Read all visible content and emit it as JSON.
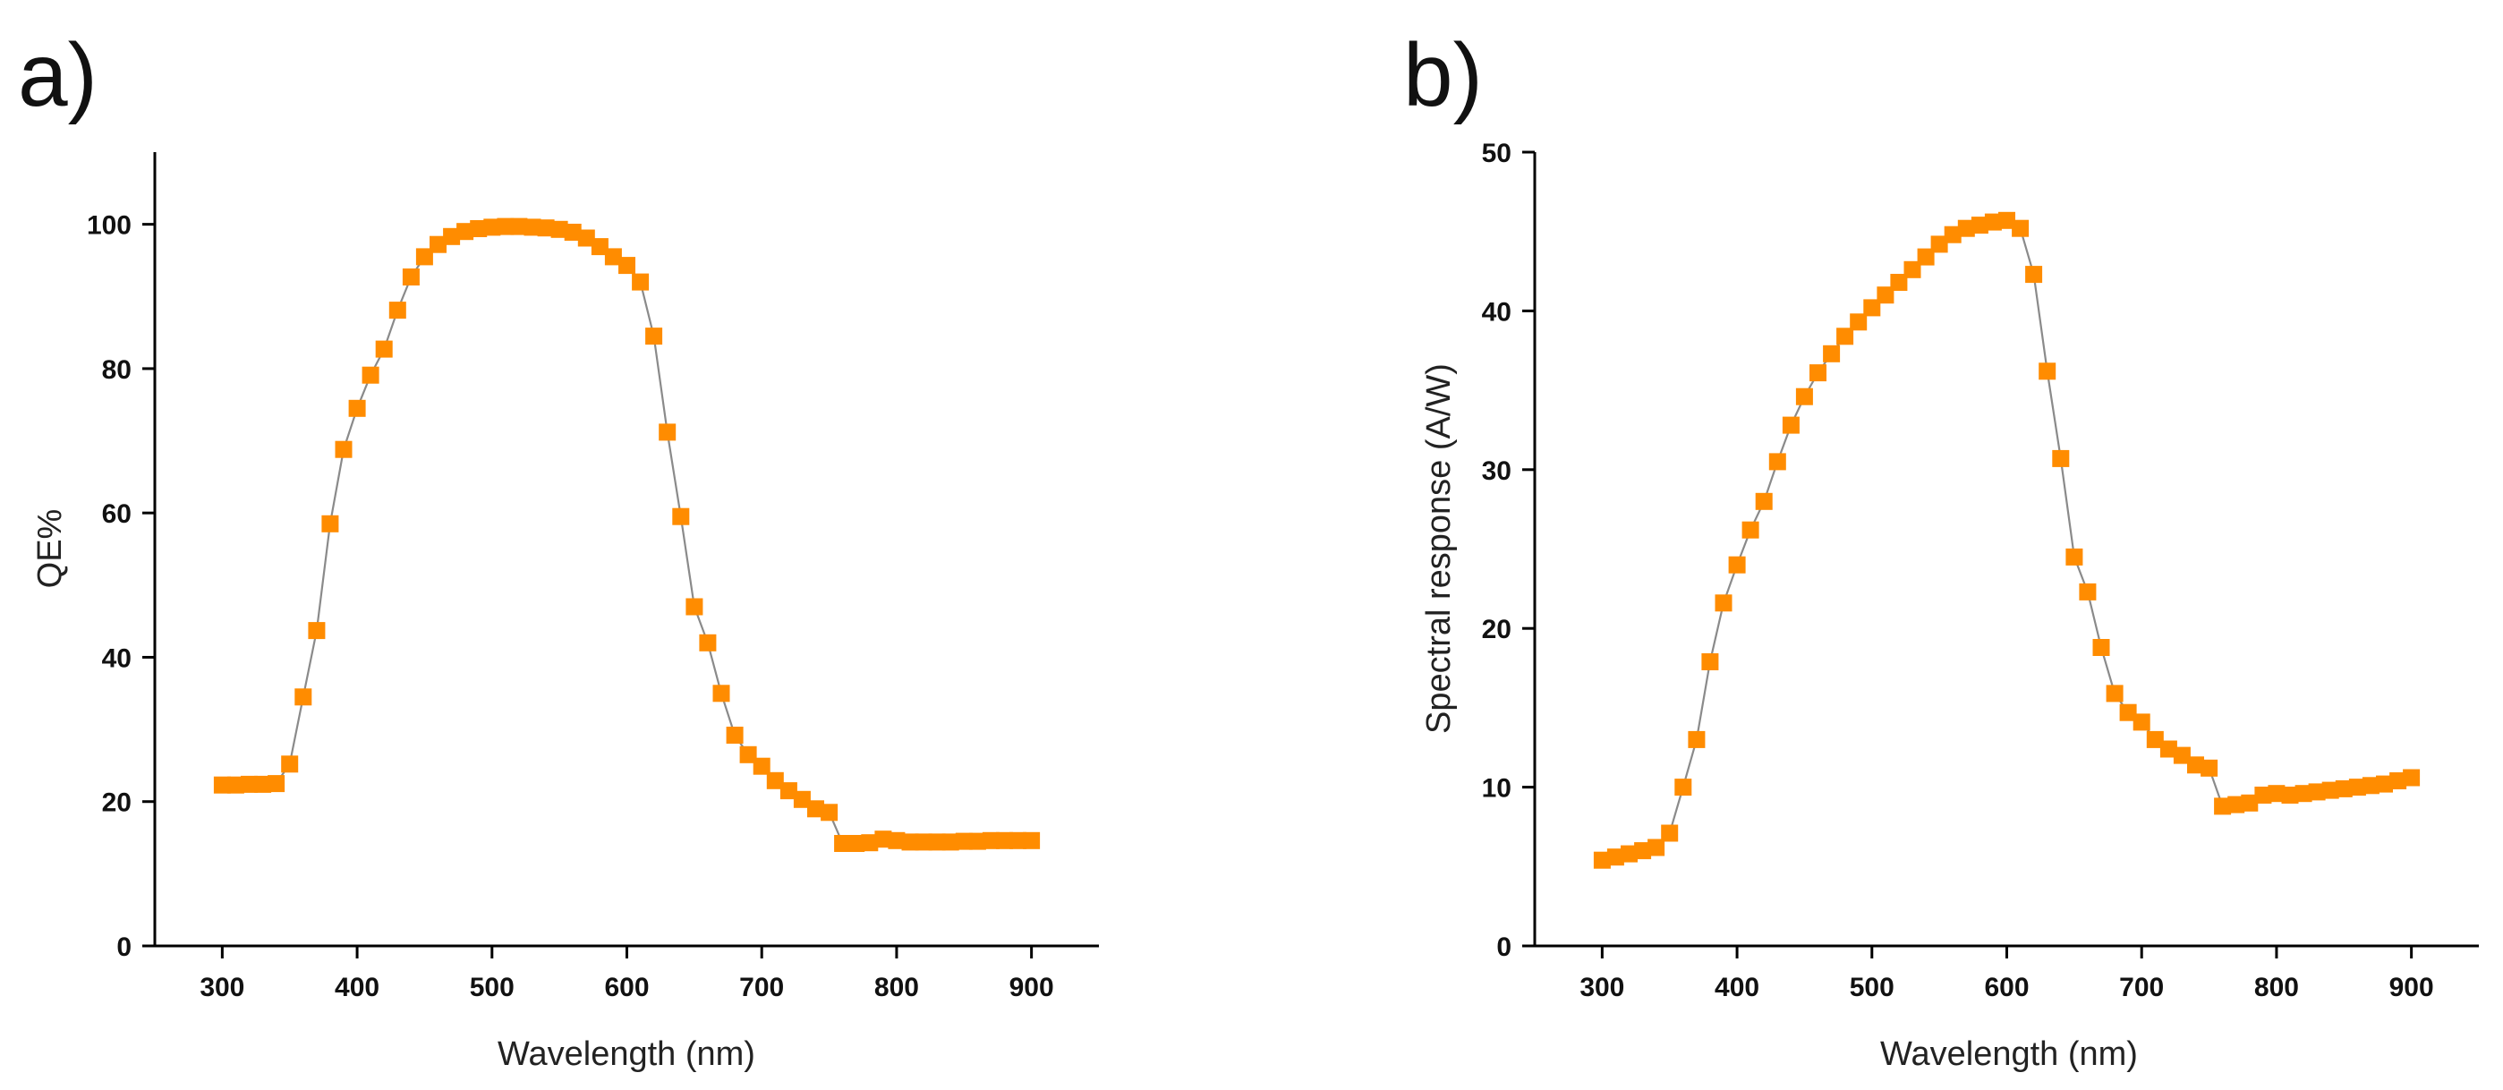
{
  "chart_data": [
    {
      "type": "line",
      "panel_label": "a)",
      "title": "",
      "xlabel": "Wavelength (nm)",
      "ylabel": "QE%",
      "xlim": [
        250,
        950
      ],
      "ylim": [
        0,
        110
      ],
      "xticks": [
        300,
        400,
        500,
        600,
        700,
        800,
        900
      ],
      "yticks": [
        0,
        20,
        40,
        60,
        80,
        100
      ],
      "xtick_labels": [
        "300",
        "400",
        "500",
        "600",
        "700",
        "800",
        "900"
      ],
      "ytick_labels": [
        "0",
        "20",
        "40",
        "60",
        "80",
        "100"
      ],
      "grid": false,
      "marker": "square",
      "marker_color": "#ff8c00",
      "line_color": "#8a8a8a",
      "series": [
        {
          "name": "QE",
          "x": [
            300,
            310,
            320,
            330,
            340,
            350,
            360,
            370,
            380,
            390,
            400,
            410,
            420,
            430,
            440,
            450,
            460,
            470,
            480,
            490,
            500,
            510,
            520,
            530,
            540,
            550,
            560,
            570,
            580,
            590,
            600,
            610,
            620,
            630,
            640,
            650,
            660,
            670,
            680,
            690,
            700,
            710,
            720,
            730,
            740,
            750,
            760,
            770,
            780,
            790,
            800,
            810,
            820,
            830,
            840,
            850,
            860,
            870,
            880,
            890,
            900
          ],
          "values": [
            22.3,
            22.3,
            22.4,
            22.4,
            22.5,
            25.2,
            34.5,
            43.7,
            58.5,
            68.8,
            74.5,
            79.1,
            82.7,
            88.1,
            92.7,
            95.5,
            97.2,
            98.3,
            99.0,
            99.4,
            99.6,
            99.7,
            99.7,
            99.6,
            99.5,
            99.3,
            98.9,
            98.1,
            96.9,
            95.5,
            94.3,
            92.0,
            84.5,
            71.2,
            59.5,
            47.0,
            42.0,
            35.0,
            29.2,
            26.5,
            24.9,
            22.9,
            21.5,
            20.3,
            19.0,
            18.5,
            14.2,
            14.2,
            14.3,
            14.8,
            14.6,
            14.4,
            14.4,
            14.4,
            14.4,
            14.5,
            14.5,
            14.6,
            14.6,
            14.6,
            14.6
          ]
        }
      ]
    },
    {
      "type": "line",
      "panel_label": "b)",
      "title": "",
      "xlabel": "Wavelength (nm)",
      "ylabel": "Spectral response (A/W)",
      "xlim": [
        250,
        950
      ],
      "ylim": [
        0,
        50
      ],
      "xticks": [
        300,
        400,
        500,
        600,
        700,
        800,
        900
      ],
      "yticks": [
        0,
        10,
        20,
        30,
        40,
        50
      ],
      "xtick_labels": [
        "300",
        "400",
        "500",
        "600",
        "700",
        "800",
        "900"
      ],
      "ytick_labels": [
        "0",
        "10",
        "20",
        "30",
        "40",
        "50"
      ],
      "grid": false,
      "marker": "square",
      "marker_color": "#ff8c00",
      "line_color": "#8a8a8a",
      "series": [
        {
          "name": "Spectral response",
          "x": [
            300,
            310,
            320,
            330,
            340,
            350,
            360,
            370,
            380,
            390,
            400,
            410,
            420,
            430,
            440,
            450,
            460,
            470,
            480,
            490,
            500,
            510,
            520,
            530,
            540,
            550,
            560,
            570,
            580,
            590,
            600,
            610,
            620,
            630,
            640,
            650,
            660,
            670,
            680,
            690,
            700,
            710,
            720,
            730,
            740,
            750,
            760,
            770,
            780,
            790,
            800,
            810,
            820,
            830,
            840,
            850,
            860,
            870,
            880,
            890,
            900
          ],
          "values": [
            5.4,
            5.6,
            5.8,
            6.0,
            6.2,
            7.1,
            10.0,
            13.0,
            17.9,
            21.6,
            24.0,
            26.2,
            28.0,
            30.5,
            32.8,
            34.6,
            36.1,
            37.3,
            38.4,
            39.3,
            40.2,
            41.0,
            41.8,
            42.6,
            43.4,
            44.2,
            44.8,
            45.2,
            45.4,
            45.6,
            45.7,
            45.2,
            42.3,
            36.2,
            30.7,
            24.5,
            22.3,
            18.8,
            15.9,
            14.7,
            14.1,
            13.0,
            12.4,
            12.0,
            11.4,
            11.2,
            8.8,
            8.9,
            9.0,
            9.5,
            9.6,
            9.5,
            9.6,
            9.7,
            9.8,
            9.9,
            10.0,
            10.1,
            10.2,
            10.4,
            10.6
          ]
        }
      ]
    }
  ]
}
